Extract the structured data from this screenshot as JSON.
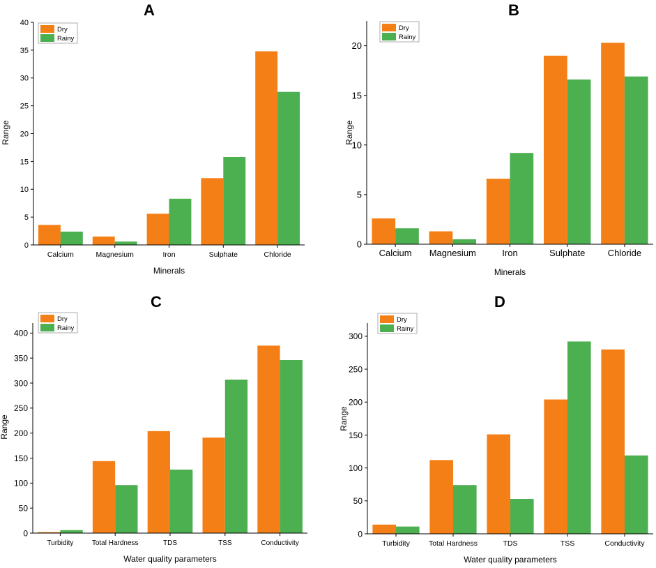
{
  "colors": {
    "dry": "#f57f17",
    "rainy": "#4caf50",
    "axis": "#000000"
  },
  "chart_data": [
    {
      "panel": "A",
      "type": "bar",
      "title": "",
      "categories": [
        "Calcium",
        "Magnesium",
        "Iron",
        "Sulphate",
        "Chloride"
      ],
      "series": [
        {
          "name": "Dry",
          "values": [
            3.6,
            1.5,
            5.6,
            12.0,
            34.8
          ]
        },
        {
          "name": "Rainy",
          "values": [
            2.4,
            0.6,
            8.3,
            15.8,
            27.5
          ]
        }
      ],
      "xlabel": "Minerals",
      "ylabel": "Range",
      "ylim": [
        0,
        40
      ],
      "yticks": [
        0,
        5,
        10,
        15,
        20,
        25,
        30,
        35,
        40
      ],
      "legend": "top-left"
    },
    {
      "panel": "B",
      "type": "bar",
      "title": "",
      "categories": [
        "Calcium",
        "Magnesium",
        "Iron",
        "Sulphate",
        "Chloride"
      ],
      "series": [
        {
          "name": "Dry",
          "values": [
            2.6,
            1.3,
            6.6,
            19.0,
            20.3
          ]
        },
        {
          "name": "Rainy",
          "values": [
            1.6,
            0.5,
            9.2,
            16.6,
            16.9
          ]
        }
      ],
      "xlabel": "Minerals",
      "ylabel": "Range",
      "ylim": [
        0,
        22.5
      ],
      "yticks": [
        0,
        5,
        10,
        15,
        20
      ],
      "legend": "top-left"
    },
    {
      "panel": "C",
      "type": "bar",
      "title": "",
      "categories": [
        "Turbidity",
        "Total Hardness",
        "TDS",
        "TSS",
        "Conductivity"
      ],
      "series": [
        {
          "name": "Dry",
          "values": [
            2,
            144,
            204,
            191,
            375
          ]
        },
        {
          "name": "Rainy",
          "values": [
            6,
            96,
            127,
            307,
            346
          ]
        }
      ],
      "xlabel": "Water quality parameters",
      "ylabel": "Range",
      "ylim": [
        0,
        420
      ],
      "yticks": [
        0,
        50,
        100,
        150,
        200,
        250,
        300,
        350,
        400
      ],
      "legend": "top-left"
    },
    {
      "panel": "D",
      "type": "bar",
      "title": "",
      "categories": [
        "Turbidity",
        "Total Hardness",
        "TDS",
        "TSS",
        "Conductivity"
      ],
      "series": [
        {
          "name": "Dry",
          "values": [
            14,
            112,
            151,
            204,
            280
          ]
        },
        {
          "name": "Rainy",
          "values": [
            11,
            74,
            53,
            292,
            119
          ]
        }
      ],
      "xlabel": "Water quality parameters",
      "ylabel": "Range",
      "ylim": [
        0,
        320
      ],
      "yticks": [
        0,
        50,
        100,
        150,
        200,
        250,
        300
      ],
      "legend": "top-left"
    }
  ]
}
